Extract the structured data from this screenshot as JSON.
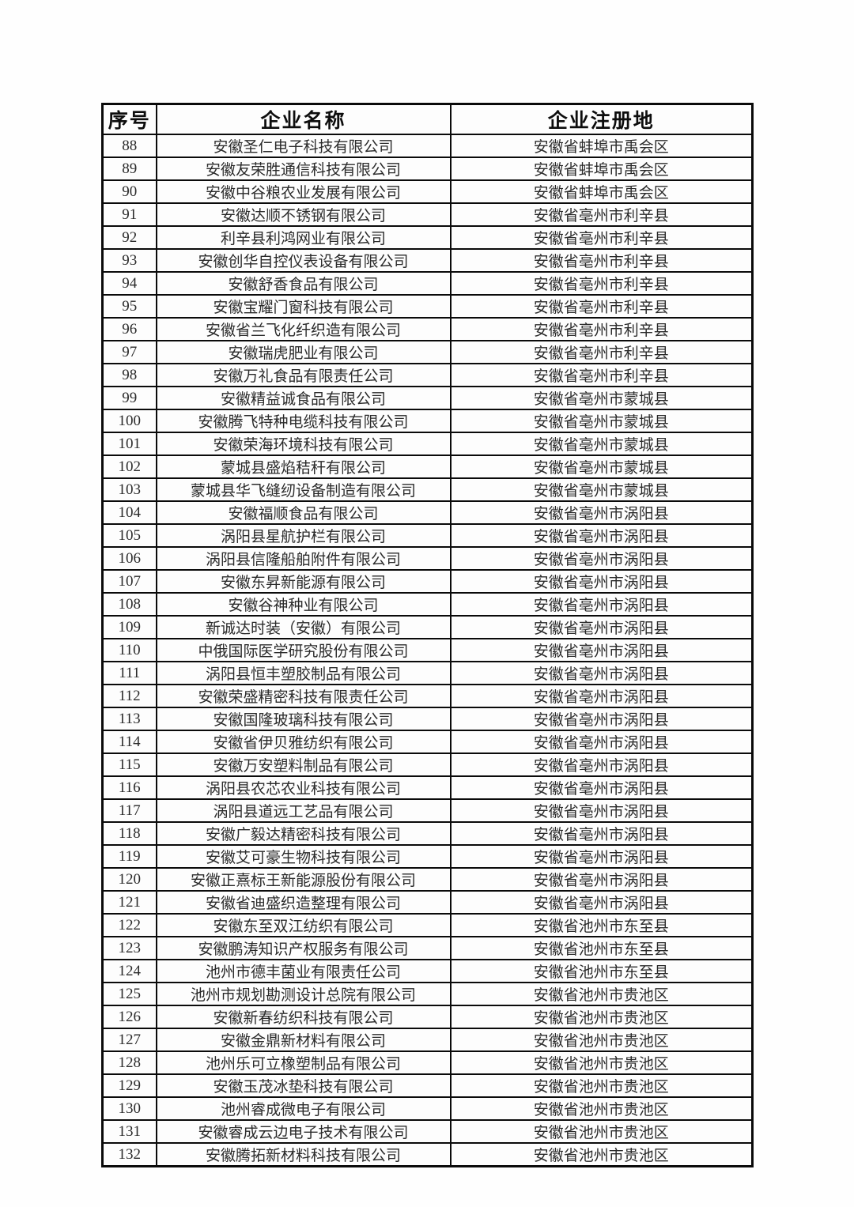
{
  "table": {
    "headers": {
      "no": "序号",
      "name": "企业名称",
      "location": "企业注册地"
    },
    "rows": [
      {
        "no": "88",
        "name": "安徽圣仁电子科技有限公司",
        "location": "安徽省蚌埠市禹会区"
      },
      {
        "no": "89",
        "name": "安徽友荣胜通信科技有限公司",
        "location": "安徽省蚌埠市禹会区"
      },
      {
        "no": "90",
        "name": "安徽中谷粮农业发展有限公司",
        "location": "安徽省蚌埠市禹会区"
      },
      {
        "no": "91",
        "name": "安徽达顺不锈钢有限公司",
        "location": "安徽省亳州市利辛县"
      },
      {
        "no": "92",
        "name": "利辛县利鸿网业有限公司",
        "location": "安徽省亳州市利辛县"
      },
      {
        "no": "93",
        "name": "安徽创华自控仪表设备有限公司",
        "location": "安徽省亳州市利辛县"
      },
      {
        "no": "94",
        "name": "安徽舒香食品有限公司",
        "location": "安徽省亳州市利辛县"
      },
      {
        "no": "95",
        "name": "安徽宝耀门窗科技有限公司",
        "location": "安徽省亳州市利辛县"
      },
      {
        "no": "96",
        "name": "安徽省兰飞化纤织造有限公司",
        "location": "安徽省亳州市利辛县"
      },
      {
        "no": "97",
        "name": "安徽瑞虎肥业有限公司",
        "location": "安徽省亳州市利辛县"
      },
      {
        "no": "98",
        "name": "安徽万礼食品有限责任公司",
        "location": "安徽省亳州市利辛县"
      },
      {
        "no": "99",
        "name": "安徽精益诚食品有限公司",
        "location": "安徽省亳州市蒙城县"
      },
      {
        "no": "100",
        "name": "安徽腾飞特种电缆科技有限公司",
        "location": "安徽省亳州市蒙城县"
      },
      {
        "no": "101",
        "name": "安徽荣海环境科技有限公司",
        "location": "安徽省亳州市蒙城县"
      },
      {
        "no": "102",
        "name": "蒙城县盛焰秸秆有限公司",
        "location": "安徽省亳州市蒙城县"
      },
      {
        "no": "103",
        "name": "蒙城县华飞缝纫设备制造有限公司",
        "location": "安徽省亳州市蒙城县"
      },
      {
        "no": "104",
        "name": "安徽福顺食品有限公司",
        "location": "安徽省亳州市涡阳县"
      },
      {
        "no": "105",
        "name": "涡阳县星航护栏有限公司",
        "location": "安徽省亳州市涡阳县"
      },
      {
        "no": "106",
        "name": "涡阳县信隆船舶附件有限公司",
        "location": "安徽省亳州市涡阳县"
      },
      {
        "no": "107",
        "name": "安徽东昇新能源有限公司",
        "location": "安徽省亳州市涡阳县"
      },
      {
        "no": "108",
        "name": "安徽谷神种业有限公司",
        "location": "安徽省亳州市涡阳县"
      },
      {
        "no": "109",
        "name": "新诚达时装（安徽）有限公司",
        "location": "安徽省亳州市涡阳县"
      },
      {
        "no": "110",
        "name": "中俄国际医学研究股份有限公司",
        "location": "安徽省亳州市涡阳县"
      },
      {
        "no": "111",
        "name": "涡阳县恒丰塑胶制品有限公司",
        "location": "安徽省亳州市涡阳县"
      },
      {
        "no": "112",
        "name": "安徽荣盛精密科技有限责任公司",
        "location": "安徽省亳州市涡阳县"
      },
      {
        "no": "113",
        "name": "安徽国隆玻璃科技有限公司",
        "location": "安徽省亳州市涡阳县"
      },
      {
        "no": "114",
        "name": "安徽省伊贝雅纺织有限公司",
        "location": "安徽省亳州市涡阳县"
      },
      {
        "no": "115",
        "name": "安徽万安塑料制品有限公司",
        "location": "安徽省亳州市涡阳县"
      },
      {
        "no": "116",
        "name": "涡阳县农芯农业科技有限公司",
        "location": "安徽省亳州市涡阳县"
      },
      {
        "no": "117",
        "name": "涡阳县道远工艺品有限公司",
        "location": "安徽省亳州市涡阳县"
      },
      {
        "no": "118",
        "name": "安徽广毅达精密科技有限公司",
        "location": "安徽省亳州市涡阳县"
      },
      {
        "no": "119",
        "name": "安徽艾可豪生物科技有限公司",
        "location": "安徽省亳州市涡阳县"
      },
      {
        "no": "120",
        "name": "安徽正熹标王新能源股份有限公司",
        "location": "安徽省亳州市涡阳县"
      },
      {
        "no": "121",
        "name": "安徽省迪盛织造整理有限公司",
        "location": "安徽省亳州市涡阳县"
      },
      {
        "no": "122",
        "name": "安徽东至双江纺织有限公司",
        "location": "安徽省池州市东至县"
      },
      {
        "no": "123",
        "name": "安徽鹏涛知识产权服务有限公司",
        "location": "安徽省池州市东至县"
      },
      {
        "no": "124",
        "name": "池州市德丰菌业有限责任公司",
        "location": "安徽省池州市东至县"
      },
      {
        "no": "125",
        "name": "池州市规划勘测设计总院有限公司",
        "location": "安徽省池州市贵池区"
      },
      {
        "no": "126",
        "name": "安徽新春纺织科技有限公司",
        "location": "安徽省池州市贵池区"
      },
      {
        "no": "127",
        "name": "安徽金鼎新材料有限公司",
        "location": "安徽省池州市贵池区"
      },
      {
        "no": "128",
        "name": "池州乐可立橡塑制品有限公司",
        "location": "安徽省池州市贵池区"
      },
      {
        "no": "129",
        "name": "安徽玉茂冰垫科技有限公司",
        "location": "安徽省池州市贵池区"
      },
      {
        "no": "130",
        "name": "池州睿成微电子有限公司",
        "location": "安徽省池州市贵池区"
      },
      {
        "no": "131",
        "name": "安徽睿成云边电子技术有限公司",
        "location": "安徽省池州市贵池区"
      },
      {
        "no": "132",
        "name": "安徽腾拓新材料科技有限公司",
        "location": "安徽省池州市贵池区"
      }
    ]
  }
}
